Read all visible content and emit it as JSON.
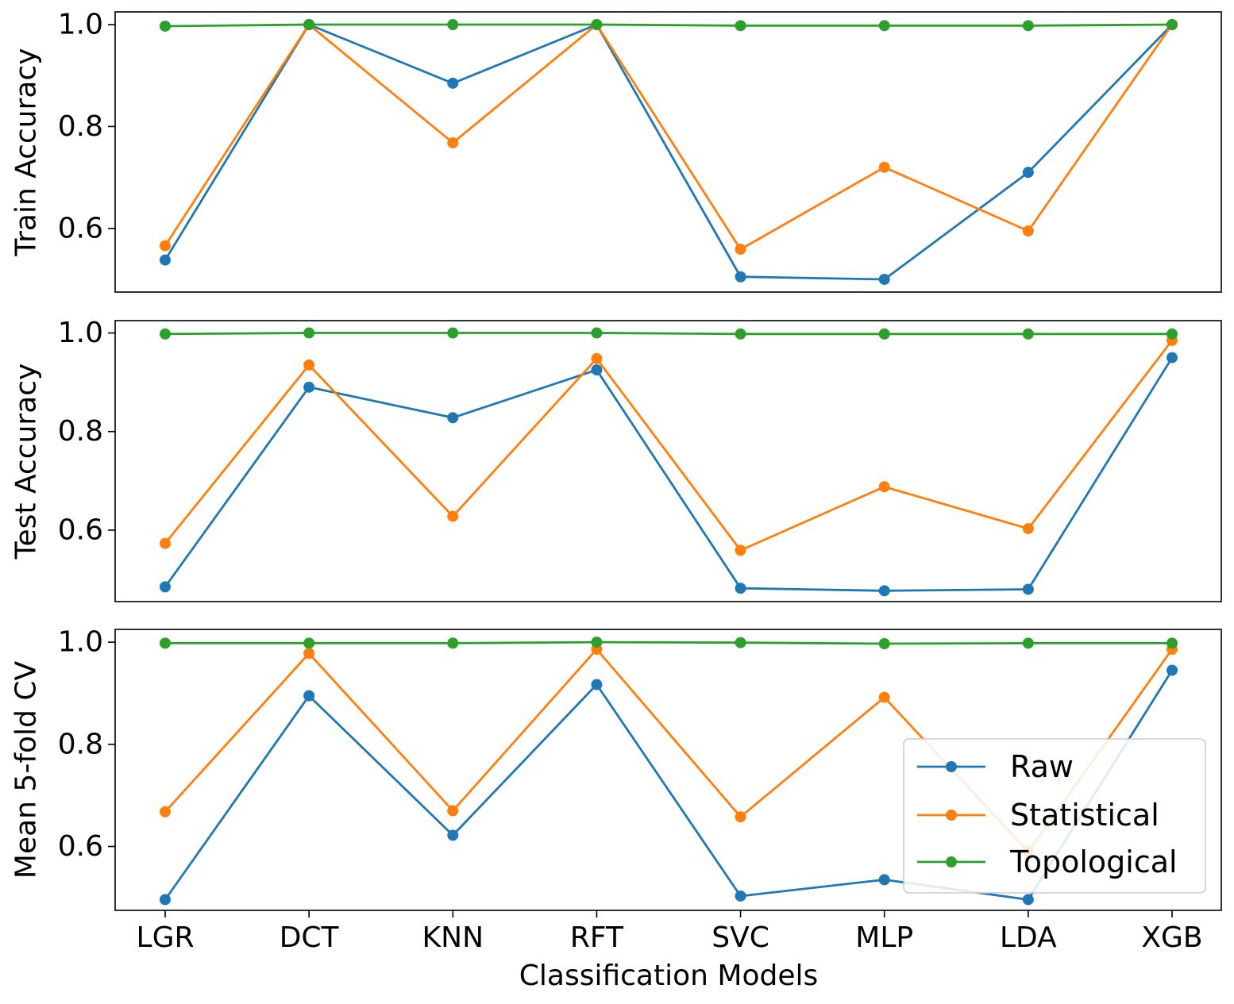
{
  "chart_data": {
    "type": "line",
    "categories": [
      "LGR",
      "DCT",
      "KNN",
      "RFT",
      "SVC",
      "MLP",
      "LDA",
      "XGB"
    ],
    "xlabel": "Classification Models",
    "colors": {
      "Raw": "#1f77b4",
      "Statistical": "#ff7f0e",
      "Topological": "#2ca02c"
    },
    "legend": {
      "entries": [
        "Raw",
        "Statistical",
        "Topological"
      ],
      "location": "lower-right of bottom panel"
    },
    "panels": [
      {
        "ylabel": "Train Accuracy",
        "ylim": [
          0.475,
          1.025
        ],
        "yticks": [
          "0.6",
          "0.8",
          "1.0"
        ],
        "series": [
          {
            "name": "Raw",
            "values": [
              0.538,
              1.0,
              0.885,
              1.0,
              0.505,
              0.5,
              0.71,
              1.0
            ]
          },
          {
            "name": "Statistical",
            "values": [
              0.566,
              1.0,
              0.768,
              1.0,
              0.559,
              0.72,
              0.595,
              1.0
            ]
          },
          {
            "name": "Topological",
            "values": [
              0.997,
              1.0,
              1.0,
              1.0,
              0.998,
              0.998,
              0.998,
              1.0
            ]
          }
        ]
      },
      {
        "ylabel": "Test Accuracy",
        "ylim": [
          0.455,
          1.025
        ],
        "yticks": [
          "0.6",
          "0.8",
          "1.0"
        ],
        "series": [
          {
            "name": "Raw",
            "values": [
              0.485,
              0.89,
              0.828,
              0.925,
              0.482,
              0.477,
              0.48,
              0.95
            ]
          },
          {
            "name": "Statistical",
            "values": [
              0.573,
              0.935,
              0.628,
              0.948,
              0.559,
              0.688,
              0.603,
              0.985
            ]
          },
          {
            "name": "Topological",
            "values": [
              0.998,
              1.0,
              1.0,
              1.0,
              0.998,
              0.998,
              0.998,
              0.998
            ]
          }
        ]
      },
      {
        "ylabel": "Mean 5-fold CV",
        "ylim": [
          0.475,
          1.025
        ],
        "yticks": [
          "0.6",
          "0.8",
          "1.0"
        ],
        "series": [
          {
            "name": "Raw",
            "values": [
              0.496,
              0.895,
              0.622,
              0.917,
              0.503,
              0.535,
              0.496,
              0.945
            ]
          },
          {
            "name": "Statistical",
            "values": [
              0.668,
              0.978,
              0.67,
              0.986,
              0.658,
              0.892,
              0.59,
              0.986
            ]
          },
          {
            "name": "Topological",
            "values": [
              0.998,
              0.998,
              0.998,
              1.0,
              0.999,
              0.997,
              0.998,
              0.998
            ]
          }
        ]
      }
    ]
  }
}
